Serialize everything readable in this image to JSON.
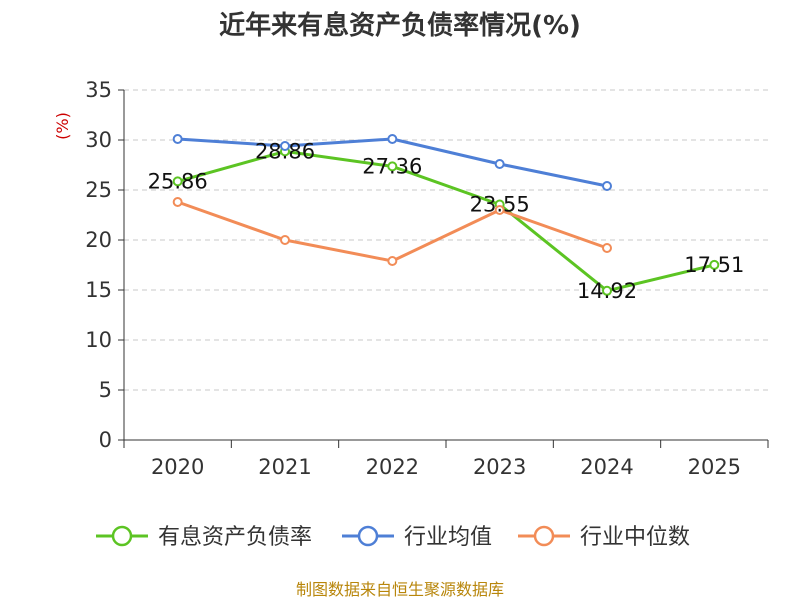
{
  "chart_data": {
    "type": "line",
    "title": "近年来有息资产负债率情况(%)",
    "ylabel": "(%)",
    "xlabel": "",
    "categories": [
      "2020",
      "2021",
      "2022",
      "2023",
      "2024",
      "2025"
    ],
    "ylim": [
      0,
      35
    ],
    "yticks": [
      0,
      5,
      10,
      15,
      20,
      25,
      30,
      35
    ],
    "grid": true,
    "legend_position": "bottom",
    "series": [
      {
        "name": "有息资产负债率",
        "color": "#5cc423",
        "values": [
          25.86,
          28.86,
          27.36,
          23.55,
          14.92,
          17.51
        ],
        "data_labels": [
          "25.86",
          "28.86",
          "27.36",
          "23.55",
          "14.92",
          "17.51"
        ]
      },
      {
        "name": "行业均值",
        "color": "#4e7fd6",
        "values": [
          30.1,
          29.4,
          30.1,
          27.6,
          25.4,
          null
        ],
        "data_labels": []
      },
      {
        "name": "行业中位数",
        "color": "#f28c57",
        "values": [
          23.8,
          20.0,
          17.9,
          23.0,
          19.2,
          null
        ],
        "data_labels": []
      }
    ],
    "source": "制图数据来自恒生聚源数据库"
  }
}
